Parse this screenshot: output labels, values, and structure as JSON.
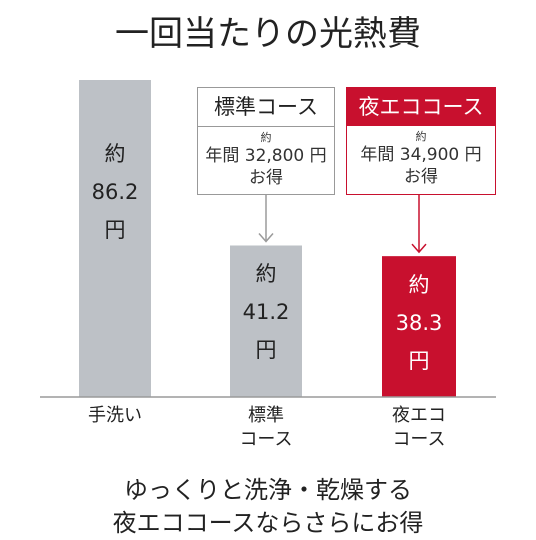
{
  "title": "一回当たりの光熱費",
  "colors": {
    "gray_bar": "#bdc1c6",
    "red": "#c8102e",
    "axis": "#9a9a9a",
    "gray_border": "#999999"
  },
  "chart_data": {
    "type": "bar",
    "title": "一回当たりの光熱費",
    "categories": [
      "手洗い",
      "標準コース",
      "夜エココース"
    ],
    "category_labels": [
      [
        "手洗い"
      ],
      [
        "標準",
        "コース"
      ],
      [
        "夜エコ",
        "コース"
      ]
    ],
    "values": [
      86.2,
      41.2,
      38.3
    ],
    "unit": "円",
    "value_prefix": "約",
    "value_labels": [
      {
        "prefix": "約",
        "value": "86.2",
        "unit": "円"
      },
      {
        "prefix": "約",
        "value": "41.2",
        "unit": "円"
      },
      {
        "prefix": "約",
        "value": "38.3",
        "unit": "円"
      }
    ],
    "bar_colors": [
      "#bdc1c6",
      "#bdc1c6",
      "#c8102e"
    ],
    "ylim": [
      0,
      86.2
    ]
  },
  "callouts": [
    {
      "name": "標準コース",
      "pre": "約",
      "line1": "年間 32,800 円",
      "line2": "お得"
    },
    {
      "name": "夜エココース",
      "pre": "約",
      "line1": "年間 34,900 円",
      "line2": "お得"
    }
  ],
  "footer": {
    "line1": "ゆっくりと洗浄・乾燥する",
    "line2": "夜エココースならさらにお得"
  }
}
